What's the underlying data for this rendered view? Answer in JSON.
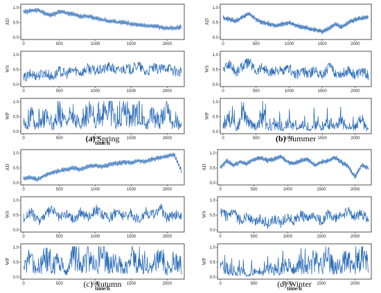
{
  "colors": {
    "line": "#2b6cb8",
    "axis": "#222222",
    "background": "#ffffff"
  },
  "panels": [
    {
      "id": "spring",
      "caption_letter": "(a)",
      "caption_name": "Spring",
      "caption_letter_bold": true,
      "show_xlabel": true
    },
    {
      "id": "summer",
      "caption_letter": "(b)",
      "caption_name": "Summer",
      "caption_letter_bold": true,
      "show_xlabel": false
    },
    {
      "id": "autumn",
      "caption_letter": "(c)",
      "caption_name": "Autumn",
      "caption_letter_bold": false,
      "show_xlabel": true
    },
    {
      "id": "winter",
      "caption_letter": "(d)",
      "caption_name": "Winter",
      "caption_letter_bold": false,
      "show_xlabel": true
    }
  ],
  "chart_data": [
    {
      "type": "line",
      "panel": "spring",
      "ylabel": "AD",
      "xlabel": "time/h",
      "xlim": [
        0,
        2200
      ],
      "ylim": [
        0,
        1.05
      ],
      "xticks": [
        0,
        500,
        1000,
        1500,
        2000
      ],
      "yticks": [
        0.0,
        0.5,
        1.0
      ],
      "series": [
        {
          "x": [
            0,
            100,
            200,
            300,
            400,
            500,
            600,
            700,
            800,
            900,
            1000,
            1100,
            1200,
            1300,
            1400,
            1500,
            1600,
            1700,
            1800,
            1900,
            2000,
            2100,
            2200
          ],
          "values": [
            0.85,
            0.9,
            0.92,
            0.8,
            0.75,
            0.88,
            0.82,
            0.78,
            0.7,
            0.72,
            0.65,
            0.6,
            0.55,
            0.52,
            0.5,
            0.45,
            0.42,
            0.4,
            0.38,
            0.35,
            0.3,
            0.32,
            0.35
          ]
        }
      ]
    },
    {
      "type": "line",
      "panel": "spring",
      "ylabel": "WS",
      "xlabel": "",
      "xlim": [
        0,
        2200
      ],
      "ylim": [
        0,
        1.05
      ],
      "xticks": [
        0,
        500,
        1000,
        1500,
        2000
      ],
      "yticks": [
        0.0,
        0.5,
        1.0
      ],
      "series": [
        {
          "x": [
            0,
            100,
            200,
            300,
            400,
            500,
            600,
            700,
            800,
            900,
            1000,
            1100,
            1200,
            1300,
            1400,
            1500,
            1600,
            1700,
            1800,
            1900,
            2000,
            2100,
            2200
          ],
          "values": [
            0.2,
            0.35,
            0.3,
            0.4,
            0.25,
            0.45,
            0.35,
            0.5,
            0.4,
            0.55,
            0.45,
            0.5,
            0.6,
            0.45,
            0.55,
            0.5,
            0.65,
            0.4,
            0.55,
            0.5,
            0.6,
            0.45,
            0.4
          ]
        }
      ]
    },
    {
      "type": "line",
      "panel": "spring",
      "ylabel": "WP",
      "xlabel": "time/h",
      "xlim": [
        0,
        2200
      ],
      "ylim": [
        0,
        1.05
      ],
      "xticks": [
        0,
        500,
        1000,
        1500,
        2000
      ],
      "yticks": [
        0.0,
        0.5,
        1.0
      ],
      "series": [
        {
          "x": [
            0,
            100,
            200,
            300,
            400,
            500,
            600,
            700,
            800,
            900,
            1000,
            1100,
            1200,
            1300,
            1400,
            1500,
            1600,
            1700,
            1800,
            1900,
            2000,
            2100,
            2200
          ],
          "values": [
            0.1,
            0.5,
            0.2,
            0.6,
            0.15,
            0.7,
            0.3,
            0.5,
            0.2,
            0.8,
            0.35,
            0.6,
            0.9,
            0.3,
            0.7,
            0.5,
            0.85,
            0.2,
            0.6,
            0.4,
            0.75,
            0.3,
            0.2
          ]
        }
      ]
    },
    {
      "type": "line",
      "panel": "summer",
      "ylabel": "AD",
      "xlabel": "",
      "xlim": [
        0,
        2200
      ],
      "ylim": [
        0,
        1.05
      ],
      "xticks": [
        0,
        500,
        1000,
        1500,
        2000
      ],
      "yticks": [
        0.0,
        0.5,
        1.0
      ],
      "series": [
        {
          "x": [
            0,
            100,
            200,
            300,
            400,
            500,
            600,
            700,
            800,
            900,
            1000,
            1100,
            1200,
            1300,
            1400,
            1500,
            1600,
            1700,
            1800,
            1900,
            2000,
            2100,
            2200
          ],
          "values": [
            0.65,
            0.6,
            0.55,
            0.7,
            0.8,
            0.6,
            0.5,
            0.45,
            0.4,
            0.45,
            0.5,
            0.4,
            0.35,
            0.3,
            0.25,
            0.2,
            0.3,
            0.45,
            0.35,
            0.5,
            0.6,
            0.65,
            0.7
          ]
        }
      ]
    },
    {
      "type": "line",
      "panel": "summer",
      "ylabel": "WS",
      "xlabel": "",
      "xlim": [
        0,
        2200
      ],
      "ylim": [
        0,
        1.05
      ],
      "xticks": [
        0,
        500,
        1000,
        1500,
        2000
      ],
      "yticks": [
        0.0,
        0.5,
        1.0
      ],
      "series": [
        {
          "x": [
            0,
            100,
            200,
            300,
            400,
            500,
            600,
            700,
            800,
            900,
            1000,
            1100,
            1200,
            1300,
            1400,
            1500,
            1600,
            1700,
            1800,
            1900,
            2000,
            2100,
            2200
          ],
          "values": [
            0.5,
            0.7,
            0.4,
            0.65,
            0.75,
            0.45,
            0.6,
            0.35,
            0.5,
            0.4,
            0.55,
            0.3,
            0.45,
            0.35,
            0.5,
            0.3,
            0.6,
            0.4,
            0.35,
            0.5,
            0.3,
            0.45,
            0.3
          ]
        }
      ]
    },
    {
      "type": "line",
      "panel": "summer",
      "ylabel": "WP",
      "xlabel": "",
      "xlim": [
        0,
        2200
      ],
      "ylim": [
        0,
        1.05
      ],
      "xticks": [
        0,
        500,
        1000,
        1500,
        2000
      ],
      "yticks": [
        0.0,
        0.5,
        1.0
      ],
      "series": [
        {
          "x": [
            0,
            100,
            200,
            300,
            400,
            500,
            600,
            700,
            800,
            900,
            1000,
            1100,
            1200,
            1300,
            1400,
            1500,
            1600,
            1700,
            1800,
            1900,
            2000,
            2100,
            2200
          ],
          "values": [
            0.2,
            0.5,
            0.1,
            0.8,
            0.3,
            0.15,
            0.6,
            0.1,
            0.35,
            0.05,
            0.4,
            0.1,
            0.25,
            0.05,
            0.3,
            0.1,
            0.45,
            0.15,
            0.35,
            0.1,
            0.2,
            0.4,
            0.05
          ]
        }
      ]
    },
    {
      "type": "line",
      "panel": "autumn",
      "ylabel": "AD",
      "xlabel": "",
      "xlim": [
        0,
        2200
      ],
      "ylim": [
        0,
        1.05
      ],
      "xticks": [
        0,
        500,
        1000,
        1500,
        2000
      ],
      "yticks": [
        0.0,
        0.5,
        1.0
      ],
      "series": [
        {
          "x": [
            0,
            100,
            200,
            300,
            400,
            500,
            600,
            700,
            800,
            900,
            1000,
            1100,
            1200,
            1300,
            1400,
            1500,
            1600,
            1700,
            1800,
            1900,
            2000,
            2100,
            2200
          ],
          "values": [
            0.15,
            0.18,
            0.12,
            0.25,
            0.35,
            0.4,
            0.45,
            0.5,
            0.45,
            0.55,
            0.6,
            0.55,
            0.62,
            0.65,
            0.7,
            0.68,
            0.75,
            0.72,
            0.8,
            0.85,
            0.9,
            0.95,
            0.4
          ]
        }
      ]
    },
    {
      "type": "line",
      "panel": "autumn",
      "ylabel": "WS",
      "xlabel": "",
      "xlim": [
        0,
        2200
      ],
      "ylim": [
        0,
        1.05
      ],
      "xticks": [
        0,
        500,
        1000,
        1500,
        2000
      ],
      "yticks": [
        0.0,
        0.5,
        1.0
      ],
      "series": [
        {
          "x": [
            0,
            100,
            200,
            300,
            400,
            500,
            600,
            700,
            800,
            900,
            1000,
            1100,
            1200,
            1300,
            1400,
            1500,
            1600,
            1700,
            1800,
            1900,
            2000,
            2100,
            2200
          ],
          "values": [
            0.4,
            0.6,
            0.3,
            0.5,
            0.7,
            0.4,
            0.55,
            0.35,
            0.6,
            0.45,
            0.7,
            0.5,
            0.4,
            0.65,
            0.45,
            0.55,
            0.35,
            0.6,
            0.5,
            0.75,
            0.4,
            0.55,
            0.45
          ]
        }
      ]
    },
    {
      "type": "line",
      "panel": "autumn",
      "ylabel": "WP",
      "xlabel": "time/h",
      "xlim": [
        0,
        2200
      ],
      "ylim": [
        0,
        1.05
      ],
      "xticks": [
        0,
        500,
        1000,
        1500,
        2000
      ],
      "yticks": [
        0.0,
        0.5,
        1.0
      ],
      "series": [
        {
          "x": [
            0,
            100,
            200,
            300,
            400,
            500,
            600,
            700,
            800,
            900,
            1000,
            1100,
            1200,
            1300,
            1400,
            1500,
            1600,
            1700,
            1800,
            1900,
            2000,
            2100,
            2200
          ],
          "values": [
            0.3,
            0.7,
            0.2,
            0.85,
            0.4,
            0.6,
            0.15,
            0.9,
            0.35,
            0.7,
            0.25,
            0.8,
            0.45,
            0.6,
            0.2,
            0.75,
            0.4,
            0.55,
            0.3,
            0.85,
            0.25,
            0.6,
            0.35
          ]
        }
      ]
    },
    {
      "type": "line",
      "panel": "winter",
      "ylabel": "AD",
      "xlabel": "",
      "xlim": [
        0,
        2200
      ],
      "ylim": [
        0,
        1.05
      ],
      "xticks": [
        0,
        500,
        1000,
        1500,
        2000
      ],
      "yticks": [
        0.0,
        0.5,
        1.0
      ],
      "series": [
        {
          "x": [
            0,
            100,
            200,
            300,
            400,
            500,
            600,
            700,
            800,
            900,
            1000,
            1100,
            1200,
            1300,
            1400,
            1500,
            1600,
            1700,
            1800,
            1900,
            2000,
            2100,
            2200
          ],
          "values": [
            0.5,
            0.75,
            0.6,
            0.7,
            0.65,
            0.8,
            0.85,
            0.75,
            0.8,
            0.9,
            0.7,
            0.65,
            0.75,
            0.8,
            0.6,
            0.7,
            0.75,
            0.85,
            0.7,
            0.55,
            0.2,
            0.6,
            0.5
          ]
        }
      ]
    },
    {
      "type": "line",
      "panel": "winter",
      "ylabel": "WS",
      "xlabel": "",
      "xlim": [
        0,
        2200
      ],
      "ylim": [
        0,
        1.05
      ],
      "xticks": [
        0,
        500,
        1000,
        1500,
        2000
      ],
      "yticks": [
        0.0,
        0.5,
        1.0
      ],
      "series": [
        {
          "x": [
            0,
            100,
            200,
            300,
            400,
            500,
            600,
            700,
            800,
            900,
            1000,
            1100,
            1200,
            1300,
            1400,
            1500,
            1600,
            1700,
            1800,
            1900,
            2000,
            2100,
            2200
          ],
          "values": [
            0.6,
            0.45,
            0.55,
            0.3,
            0.5,
            0.25,
            0.4,
            0.2,
            0.35,
            0.25,
            0.45,
            0.3,
            0.5,
            0.35,
            0.45,
            0.3,
            0.55,
            0.35,
            0.5,
            0.6,
            0.45,
            0.55,
            0.4
          ]
        }
      ]
    },
    {
      "type": "line",
      "panel": "winter",
      "ylabel": "WP",
      "xlabel": "time/h",
      "xlim": [
        0,
        2200
      ],
      "ylim": [
        0,
        1.05
      ],
      "xticks": [
        0,
        500,
        1000,
        1500,
        2000
      ],
      "yticks": [
        0.0,
        0.5,
        1.0
      ],
      "series": [
        {
          "x": [
            0,
            100,
            200,
            300,
            400,
            500,
            600,
            700,
            800,
            900,
            1000,
            1100,
            1200,
            1300,
            1400,
            1500,
            1600,
            1700,
            1800,
            1900,
            2000,
            2100,
            2200
          ],
          "values": [
            0.55,
            0.3,
            0.1,
            0.25,
            0.05,
            0.2,
            0.1,
            0.35,
            0.15,
            0.3,
            0.5,
            0.25,
            0.45,
            0.3,
            0.6,
            0.4,
            0.7,
            0.35,
            0.5,
            0.65,
            0.45,
            0.75,
            0.4
          ]
        }
      ]
    }
  ]
}
